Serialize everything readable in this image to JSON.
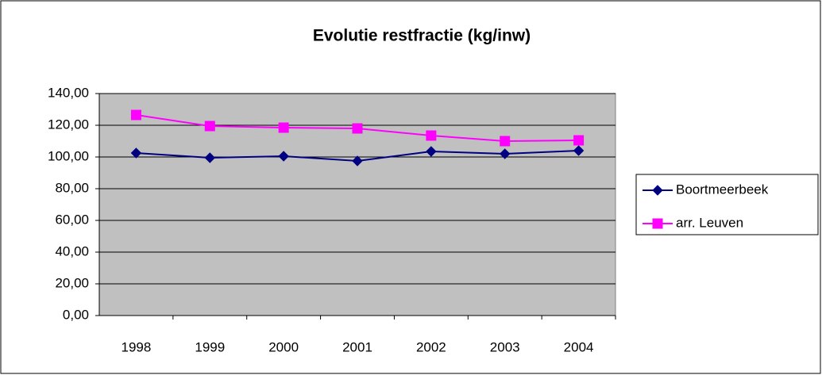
{
  "chart_data": {
    "type": "line",
    "title": "Evolutie restfractie (kg/inw)",
    "categories": [
      "1998",
      "1999",
      "2000",
      "2001",
      "2002",
      "2003",
      "2004"
    ],
    "series": [
      {
        "name": "Boortmeerbeek",
        "color": "#000080",
        "marker": "diamond",
        "values": [
          102.5,
          99.5,
          100.5,
          97.5,
          103.5,
          102,
          104
        ]
      },
      {
        "name": "arr. Leuven",
        "color": "#ff00ff",
        "marker": "square",
        "values": [
          126.5,
          119.5,
          118.5,
          118,
          113.5,
          110,
          110.5
        ]
      }
    ],
    "ylim": [
      0,
      140
    ],
    "yticks": [
      {
        "value": 0,
        "label": "0,00"
      },
      {
        "value": 20,
        "label": "20,00"
      },
      {
        "value": 40,
        "label": "40,00"
      },
      {
        "value": 60,
        "label": "60,00"
      },
      {
        "value": 80,
        "label": "80,00"
      },
      {
        "value": 100,
        "label": "100,00"
      },
      {
        "value": 120,
        "label": "120,00"
      },
      {
        "value": 140,
        "label": "140,00"
      }
    ],
    "grid": true,
    "legend": "right"
  }
}
